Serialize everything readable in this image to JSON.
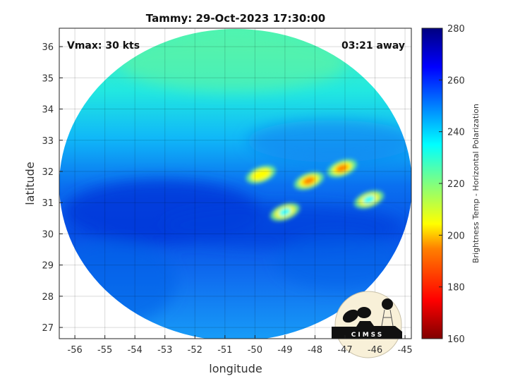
{
  "chart_data": {
    "type": "heatmap",
    "title": "Tammy: 29-Oct-2023 17:30:00",
    "xlabel": "longitude",
    "ylabel": "latitude",
    "xlim": [
      -56.52,
      -44.79
    ],
    "ylim": [
      26.64,
      36.59
    ],
    "xticks": [
      "-56",
      "-55",
      "-54",
      "-53",
      "-52",
      "-51",
      "-50",
      "-49",
      "-48",
      "-47",
      "-46",
      "-45"
    ],
    "yticks": [
      "27",
      "28",
      "29",
      "30",
      "31",
      "32",
      "33",
      "34",
      "35",
      "36"
    ],
    "grid": true,
    "annotations": {
      "left": "Vmax: 30 kts",
      "right": "03:21 away"
    },
    "colorbar": {
      "label": "Brightness Temp - Horizontal Polarization",
      "range": [
        160,
        280
      ],
      "ticks": [
        "160",
        "180",
        "200",
        "220",
        "240",
        "260",
        "280"
      ],
      "colormap": [
        "#800000",
        "#ff0000",
        "#ff8000",
        "#ffff00",
        "#80ff80",
        "#00ffff",
        "#0080ff",
        "#0000ff",
        "#000080"
      ]
    },
    "features": [
      {
        "lon": -47.1,
        "lat": 32.1,
        "value": 185
      },
      {
        "lon": -48.2,
        "lat": 31.7,
        "value": 190
      },
      {
        "lon": -49.8,
        "lat": 31.9,
        "value": 210
      },
      {
        "lon": -46.2,
        "lat": 31.1,
        "value": 228
      },
      {
        "lon": -49.0,
        "lat": 30.7,
        "value": 235
      }
    ],
    "logo_text": "CIMSS"
  }
}
